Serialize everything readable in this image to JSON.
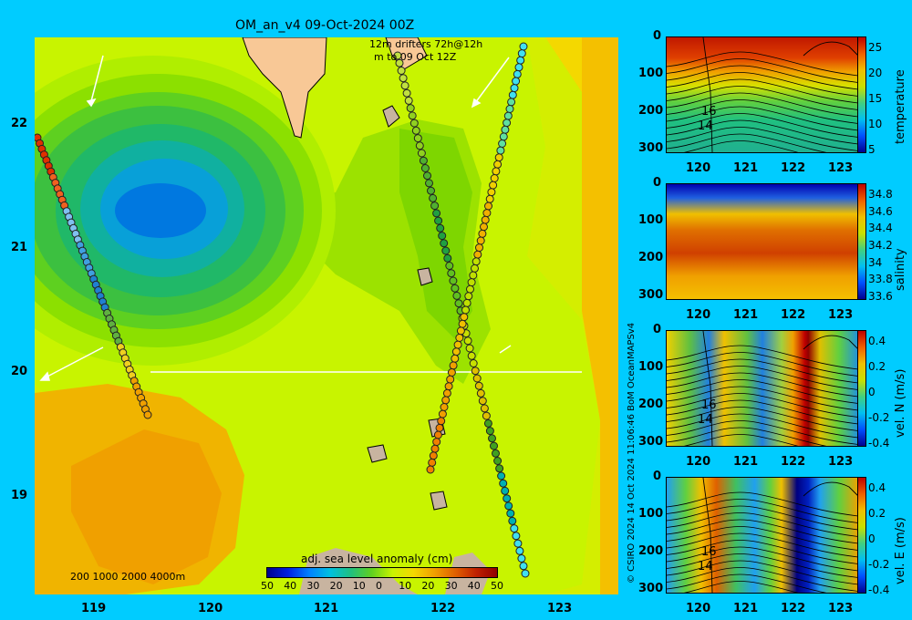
{
  "map": {
    "title": "OM_an_v4  09-Oct-2024 00Z",
    "drifters_line1": "12m  drifters 72h@12h",
    "drifters_line2": "m      to 09 Oct 12Z",
    "lat_ticks": [
      "22",
      "21",
      "20",
      "19"
    ],
    "lon_ticks": [
      "119",
      "120",
      "121",
      "122",
      "123"
    ],
    "depth_legend": "200  1000  2000  4000m",
    "colorbar_title": "adj. sea level anomaly (cm)",
    "colorbar_ticks": [
      "50",
      "40",
      "30",
      "20",
      "10",
      "0",
      "10",
      "20",
      "30",
      "40",
      "50"
    ],
    "credit": "© CSIRO 2024   14 Oct 2024 11:06:46 BoM OceanMAPSv4",
    "colors": {
      "land": "#f8c896",
      "frame": "#c8b4a0",
      "background": "#00ccff"
    }
  },
  "panels": [
    {
      "name": "temperature",
      "label": "temperature",
      "cbar_ticks": [
        "25",
        "20",
        "15",
        "10",
        "5"
      ],
      "contour_labels": [
        "16",
        "14"
      ]
    },
    {
      "name": "salinity",
      "label": "salinity",
      "cbar_ticks": [
        "34.8",
        "34.6",
        "34.4",
        "34.2",
        "34",
        "33.8",
        "33.6"
      ],
      "contour_labels": []
    },
    {
      "name": "vel-n",
      "label": "vel. N (m/s)",
      "cbar_ticks": [
        "0.4",
        "0.2",
        "0",
        "-0.2",
        "-0.4"
      ],
      "contour_labels": [
        "16",
        "14"
      ]
    },
    {
      "name": "vel-e",
      "label": "vel. E (m/s)",
      "cbar_ticks": [
        "0.4",
        "0.2",
        "0",
        "-0.2",
        "-0.4"
      ],
      "contour_labels": [
        "16",
        "14"
      ]
    }
  ],
  "panel_depth_ticks": [
    "0",
    "100",
    "200",
    "300"
  ],
  "panel_lon_ticks": [
    "120",
    "121",
    "122",
    "123"
  ]
}
